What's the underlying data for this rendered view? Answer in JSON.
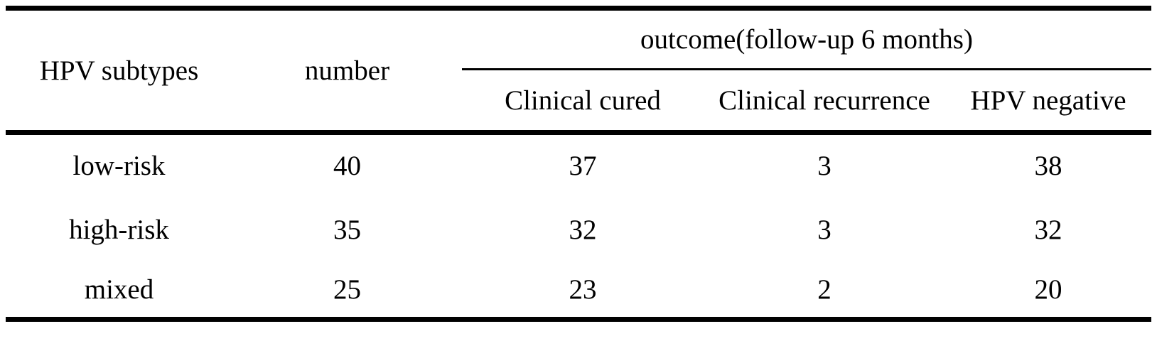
{
  "table": {
    "headers": {
      "hpv_subtypes": "HPV subtypes",
      "number": "number",
      "outcome_group": "outcome(follow-up 6 months)"
    },
    "sub_headers": {
      "clinical_cured": "Clinical cured",
      "clinical_recurrence": "Clinical recurrence",
      "hpv_negative": "HPV negative"
    },
    "rows": [
      {
        "subtype": "low-risk",
        "number": "40",
        "clinical_cured": "37",
        "clinical_recurrence": "3",
        "hpv_negative": "38"
      },
      {
        "subtype": "high-risk",
        "number": "35",
        "clinical_cured": "32",
        "clinical_recurrence": "3",
        "hpv_negative": "32"
      },
      {
        "subtype": "mixed",
        "number": "25",
        "clinical_cured": "23",
        "clinical_recurrence": "2",
        "hpv_negative": "20"
      }
    ],
    "colors": {
      "text": "#000000",
      "background": "#ffffff",
      "rule": "#000000"
    }
  }
}
